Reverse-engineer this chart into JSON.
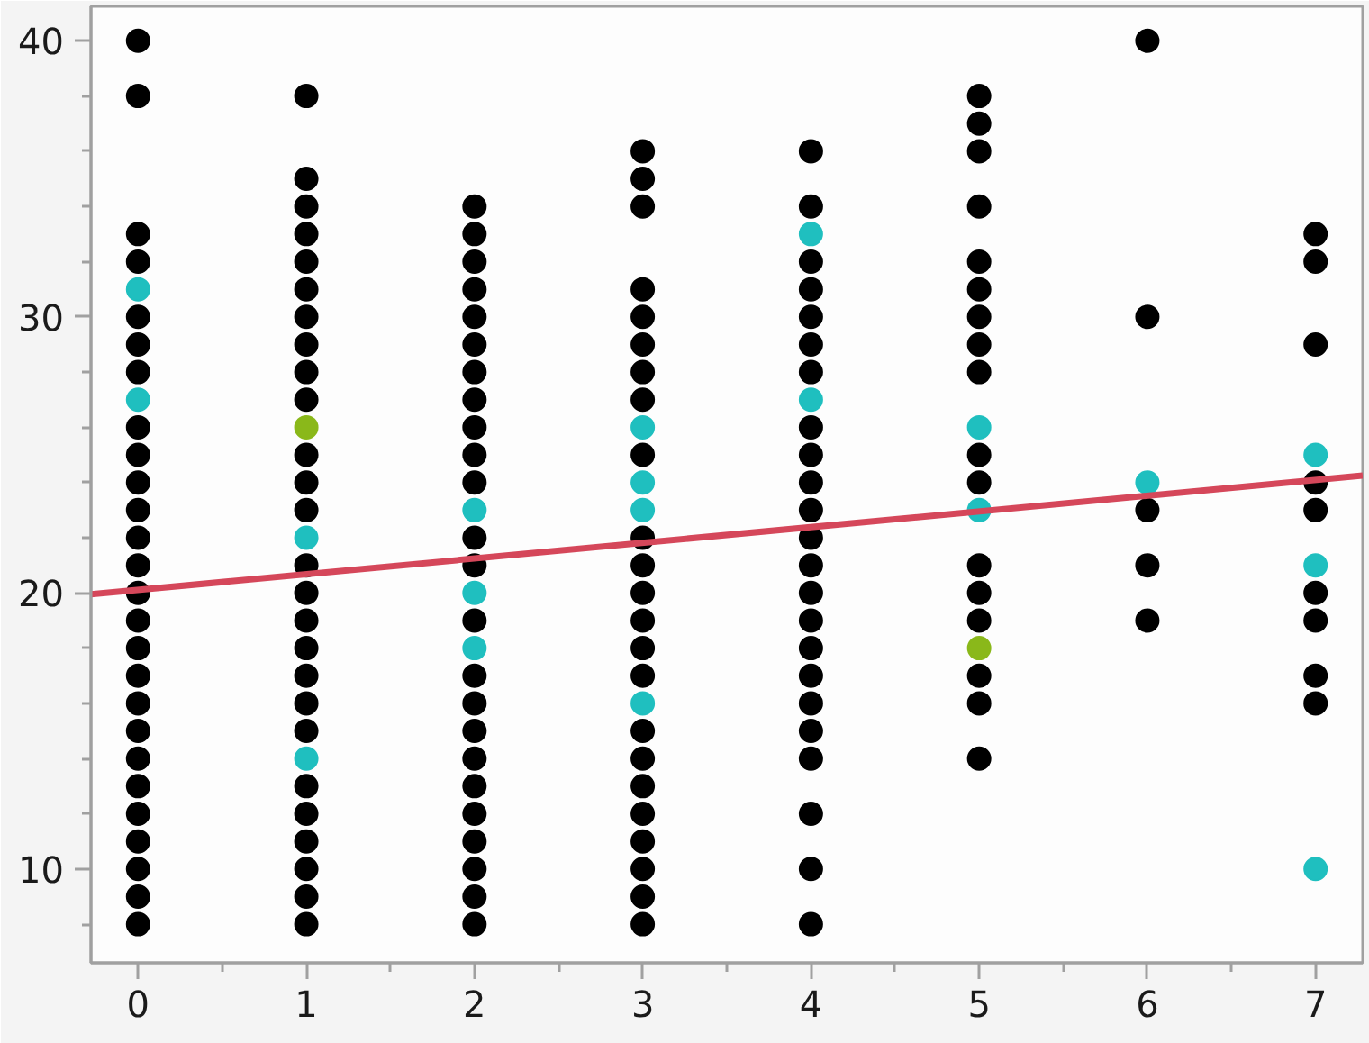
{
  "chart_data": {
    "type": "scatter",
    "xlim": [
      -0.28,
      7.28
    ],
    "ylim": [
      6.6,
      41.25
    ],
    "xticks": [
      0,
      {
        "value": 0.5,
        "label": null
      },
      1,
      {
        "value": 1.5,
        "label": null
      },
      2,
      {
        "value": 2.5,
        "label": null
      },
      3,
      {
        "value": 3.5,
        "label": null
      },
      4,
      {
        "value": 4.5,
        "label": null
      },
      5,
      {
        "value": 5.5,
        "label": null
      },
      6,
      {
        "value": 6.5,
        "label": null
      },
      7
    ],
    "yticks": [
      {
        "value": 8,
        "label": null
      },
      10,
      {
        "value": 12,
        "label": null
      },
      {
        "value": 14,
        "label": null
      },
      {
        "value": 16,
        "label": null
      },
      {
        "value": 18,
        "label": null
      },
      20,
      {
        "value": 22,
        "label": null
      },
      {
        "value": 24,
        "label": null
      },
      {
        "value": 26,
        "label": null
      },
      {
        "value": 28,
        "label": null
      },
      30,
      {
        "value": 32,
        "label": null
      },
      {
        "value": 34,
        "label": null
      },
      {
        "value": 36,
        "label": null
      },
      {
        "value": 38,
        "label": null
      },
      40
    ],
    "grid": false,
    "marker": "circle",
    "series": [
      {
        "color": "#000000",
        "x": [
          0,
          0,
          0,
          0,
          0,
          0,
          0,
          0,
          0,
          0,
          0,
          0,
          0,
          0,
          0,
          0,
          0,
          0,
          0,
          0,
          0,
          0,
          0,
          0,
          0,
          0,
          1,
          1,
          1,
          1,
          1,
          1,
          1,
          1,
          1,
          1,
          1,
          1,
          1,
          1,
          1,
          1,
          1,
          1,
          1,
          1,
          1,
          1,
          1,
          1,
          1,
          1,
          2,
          2,
          2,
          2,
          2,
          2,
          2,
          2,
          2,
          2,
          2,
          2,
          2,
          2,
          2,
          2,
          2,
          2,
          2,
          2,
          2,
          2,
          2,
          2,
          3,
          3,
          3,
          3,
          3,
          3,
          3,
          3,
          3,
          3,
          3,
          3,
          3,
          3,
          3,
          3,
          3,
          3,
          3,
          3,
          3,
          3,
          3,
          4,
          4,
          4,
          4,
          4,
          4,
          4,
          4,
          4,
          4,
          4,
          4,
          4,
          4,
          4,
          4,
          4,
          4,
          4,
          4,
          4,
          4,
          4,
          5,
          5,
          5,
          5,
          5,
          5,
          5,
          5,
          5,
          5,
          5,
          5,
          5,
          5,
          5,
          5,
          5,
          6,
          6,
          6,
          6,
          6,
          7,
          7,
          7,
          7,
          7,
          7,
          7,
          7,
          7
        ],
        "values": [
          40,
          38,
          33,
          32,
          30,
          29,
          28,
          26,
          25,
          24,
          23,
          22,
          21,
          20,
          19,
          18,
          17,
          16,
          15,
          14,
          13,
          12,
          11,
          10,
          9,
          8,
          38,
          35,
          34,
          33,
          32,
          31,
          30,
          29,
          28,
          27,
          25,
          24,
          23,
          21,
          20,
          19,
          18,
          17,
          16,
          15,
          13,
          12,
          11,
          10,
          9,
          8,
          34,
          33,
          32,
          31,
          30,
          29,
          28,
          27,
          26,
          25,
          24,
          22,
          21,
          19,
          17,
          16,
          15,
          14,
          13,
          12,
          11,
          10,
          9,
          8,
          36,
          35,
          34,
          31,
          30,
          29,
          28,
          27,
          25,
          22,
          21,
          20,
          19,
          18,
          17,
          15,
          14,
          13,
          12,
          11,
          10,
          9,
          8,
          36,
          34,
          32,
          31,
          30,
          29,
          28,
          26,
          25,
          24,
          23,
          22,
          21,
          20,
          19,
          18,
          17,
          16,
          15,
          14,
          12,
          10,
          8,
          38,
          37,
          36,
          34,
          32,
          31,
          30,
          29,
          28,
          25,
          24,
          21,
          20,
          19,
          17,
          16,
          14,
          40,
          30,
          23,
          21,
          19,
          33,
          32,
          29,
          24,
          23,
          20,
          19,
          17,
          16
        ]
      },
      {
        "color": "#1fbfbf",
        "x": [
          0,
          0,
          1,
          1,
          2,
          2,
          2,
          3,
          3,
          3,
          3,
          4,
          4,
          5,
          5,
          6,
          7,
          7,
          7
        ],
        "values": [
          31,
          27,
          22,
          14,
          23,
          20,
          18,
          26,
          24,
          23,
          16,
          33,
          27,
          26,
          23,
          24,
          25,
          21,
          10
        ]
      },
      {
        "color": "#8ab81a",
        "x": [
          1,
          5
        ],
        "values": [
          26,
          18
        ]
      },
      {
        "type": "line",
        "color": "#d5475a",
        "marker": "none",
        "line_style": "solid",
        "x": [
          -0.28,
          7.28
        ],
        "values": [
          19.95,
          24.25
        ]
      }
    ]
  }
}
